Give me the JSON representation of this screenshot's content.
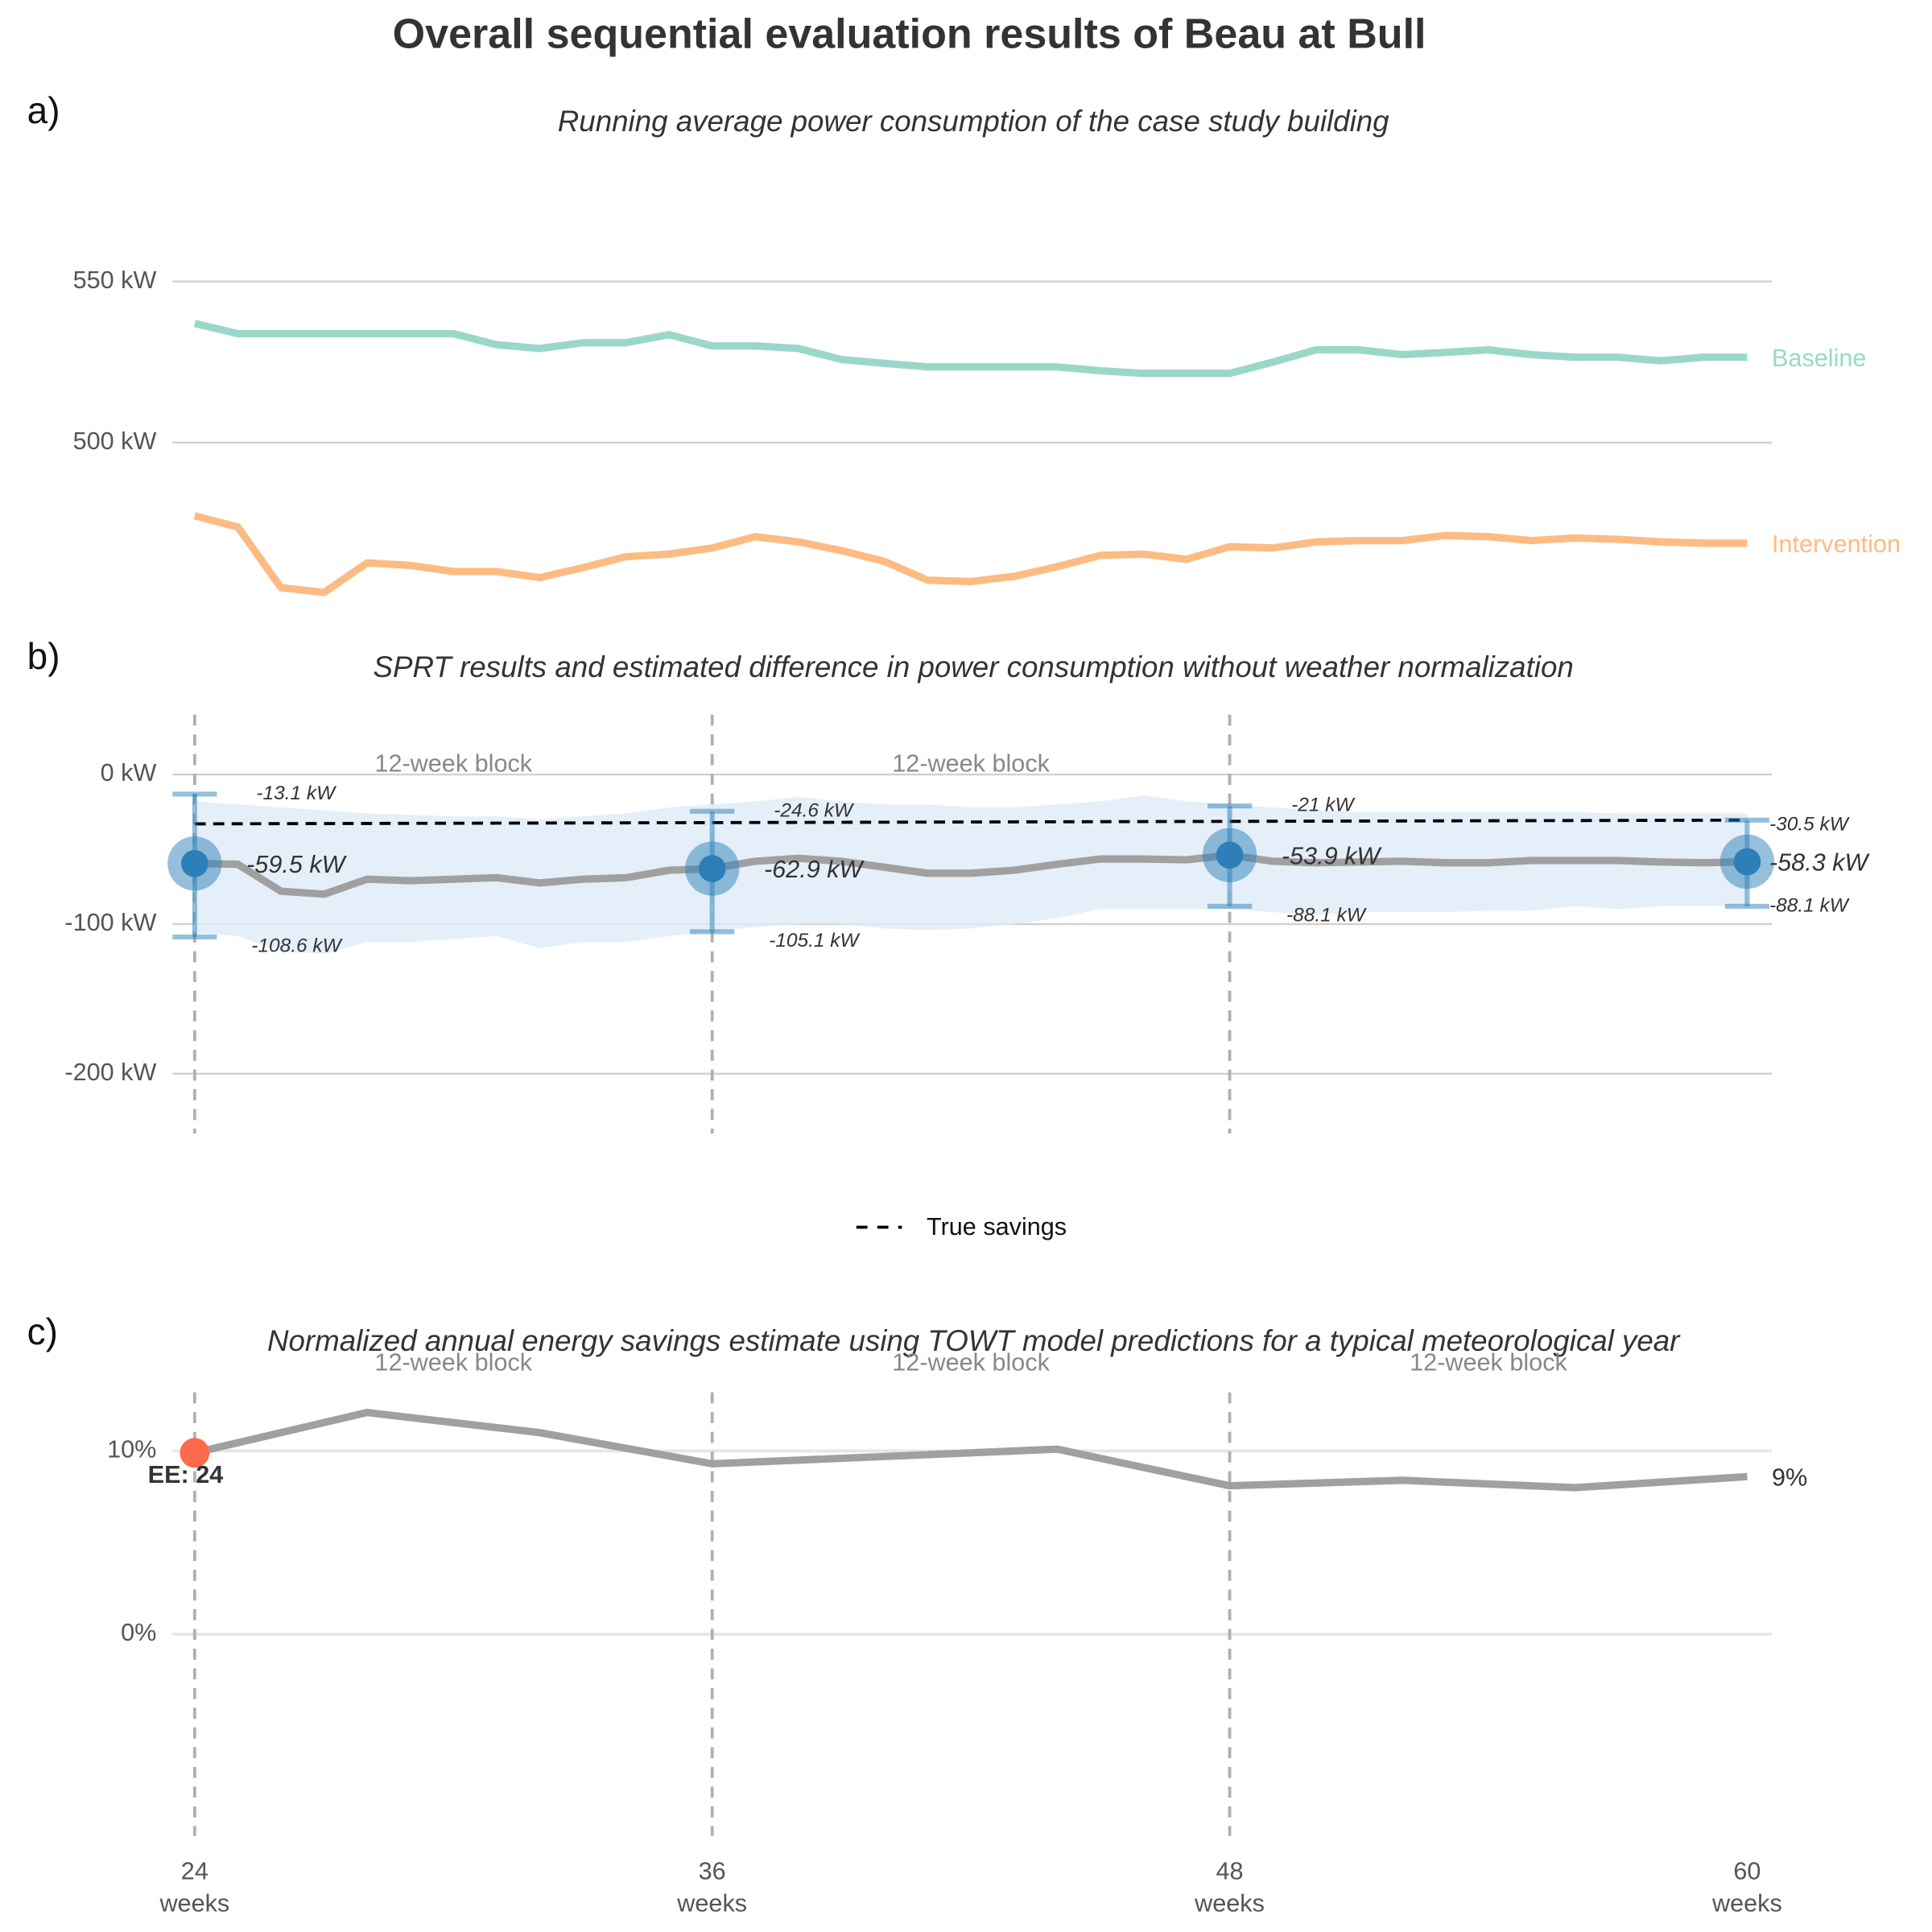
{
  "title": "Overall sequential evaluation results of Beau at Bull",
  "chart_data": [
    {
      "type": "line",
      "panel_label": "a)",
      "subtitle": "Running average power consumption of the case study building",
      "x": [
        24,
        25,
        26,
        27,
        28,
        29,
        30,
        31,
        32,
        33,
        34,
        35,
        36,
        37,
        38,
        39,
        40,
        41,
        42,
        43,
        44,
        45,
        46,
        47,
        48,
        49,
        50,
        51,
        52,
        53,
        54,
        55,
        56,
        57,
        58,
        59,
        60
      ],
      "series": [
        {
          "name": "Baseline",
          "color": "#99d8c9",
          "values": [
            537,
            533.8,
            533.8,
            533.8,
            533.8,
            533.8,
            533.8,
            530.4,
            529.2,
            531,
            531,
            533.5,
            530,
            530,
            529.2,
            525.8,
            524.6,
            523.5,
            523.5,
            523.5,
            523.5,
            522.3,
            521.5,
            521.5,
            521.5,
            525,
            528.8,
            528.8,
            527.3,
            528,
            528.8,
            527.3,
            526.5,
            526.5,
            525.4,
            526.5,
            526.5
          ]
        },
        {
          "name": "Intervention",
          "color": "#fdbb84",
          "values": [
            477.3,
            473.8,
            455,
            453.5,
            462.7,
            461.9,
            460,
            460,
            458.1,
            461.2,
            464.6,
            465.4,
            467.3,
            470.8,
            469.2,
            466.5,
            463.1,
            457.3,
            456.9,
            458.5,
            461.5,
            465,
            465.4,
            463.8,
            467.7,
            467.3,
            469.2,
            469.6,
            469.6,
            471.2,
            470.8,
            469.6,
            470.4,
            470,
            469.2,
            468.8,
            468.8
          ]
        }
      ],
      "xlim": [
        24,
        60
      ],
      "ylim": [
        450,
        580
      ],
      "yticks": [
        {
          "value": 500,
          "label": "500 kW"
        },
        {
          "value": 550,
          "label": "550 kW"
        }
      ],
      "grid": true,
      "legend": "line-end"
    },
    {
      "type": "errorbar",
      "panel_label": "b)",
      "subtitle": "SPRT results and estimated difference in power consumption without weather normalization",
      "x": [
        24,
        25,
        26,
        27,
        28,
        29,
        30,
        31,
        32,
        33,
        34,
        35,
        36,
        37,
        38,
        39,
        40,
        41,
        42,
        43,
        44,
        45,
        46,
        47,
        48,
        49,
        50,
        51,
        52,
        53,
        54,
        55,
        56,
        57,
        58,
        59,
        60
      ],
      "line": {
        "color": "#a0a0a0",
        "values": [
          -59.5,
          -60,
          -78,
          -80,
          -70,
          -71,
          -70,
          -69,
          -72.5,
          -70,
          -69,
          -64,
          -62.9,
          -58,
          -56,
          -58,
          -62,
          -66,
          -66,
          -64,
          -60,
          -56.5,
          -56.5,
          -57,
          -53.9,
          -58,
          -59,
          -58.5,
          -58,
          -59,
          -59,
          -57.5,
          -57.5,
          -57.5,
          -58.5,
          -59,
          -58.3
        ]
      },
      "band": {
        "color": "#deebf7",
        "upper": [
          -18,
          -20,
          -22,
          -24,
          -26,
          -27,
          -28,
          -28,
          -30,
          -28,
          -26,
          -22,
          -20,
          -18,
          -15,
          -18,
          -20,
          -20,
          -22,
          -22,
          -20,
          -18,
          -14,
          -18,
          -20,
          -22,
          -24,
          -25,
          -25,
          -25,
          -25,
          -25,
          -25,
          -26,
          -26,
          -26,
          -26
        ],
        "lower": [
          -106,
          -108,
          -118,
          -120,
          -112,
          -112,
          -110,
          -108,
          -116,
          -112,
          -112,
          -108,
          -105,
          -102,
          -100,
          -100,
          -103,
          -104,
          -103,
          -100,
          -96,
          -90,
          -90,
          -90,
          -90,
          -92,
          -94,
          -92,
          -92,
          -92,
          -91,
          -91,
          -88,
          -90,
          -88,
          -88,
          -88
        ]
      },
      "checkpoints": {
        "color": "#2c7fb8",
        "x": [
          24,
          36,
          48,
          60
        ],
        "values": [
          -59.5,
          -62.9,
          -53.9,
          -58.3
        ],
        "value_labels": [
          "-59.5 kW",
          "-62.9 kW",
          "-53.9 kW",
          "-58.3 kW"
        ],
        "upper": [
          -13.1,
          -24.6,
          -21,
          -30.5
        ],
        "upper_labels": [
          "-13.1 kW",
          "-24.6 kW",
          "-21 kW",
          "-30.5 kW"
        ],
        "lower": [
          -108.6,
          -105.1,
          -88.1,
          -88.1
        ],
        "lower_labels": [
          "-108.6 kW",
          "-105.1 kW",
          "-88.1 kW",
          "-88.1 kW"
        ]
      },
      "true_savings": {
        "name": "True savings",
        "color": "#000000",
        "x": [
          24,
          60
        ],
        "values": [
          -33,
          -30.5
        ]
      },
      "block_lines": [
        24,
        36,
        48
      ],
      "block_labels": [
        {
          "x": 30,
          "label": "12-week block"
        },
        {
          "x": 42,
          "label": "12-week block"
        }
      ],
      "xlim": [
        24,
        60
      ],
      "ylim": [
        -240,
        40
      ],
      "yticks": [
        {
          "value": -200,
          "label": "-200 kW"
        },
        {
          "value": -100,
          "label": "-100 kW"
        },
        {
          "value": 0,
          "label": "0 kW"
        }
      ],
      "grid": true
    },
    {
      "type": "line",
      "panel_label": "c)",
      "subtitle": "Normalized annual energy savings estimate using TOWT model predictions for a typical meteorological year",
      "x": [
        24,
        28,
        32,
        36,
        40,
        44,
        48,
        52,
        56,
        60
      ],
      "values": [
        9.9,
        12.1,
        11.0,
        9.3,
        9.7,
        10.1,
        8.1,
        8.4,
        8.0,
        8.6
      ],
      "color": "#a0a0a0",
      "value_labels": [
        null,
        null,
        null,
        null,
        null,
        null,
        null,
        null,
        null,
        "9%"
      ],
      "ee_marker": {
        "x": 24,
        "value": 9.9,
        "label": "EE: 24",
        "color": "#fb6a4a"
      },
      "block_lines": [
        24,
        36,
        48
      ],
      "block_labels": [
        {
          "x": 30,
          "label": "12-week block"
        },
        {
          "x": 42,
          "label": "12-week block"
        },
        {
          "x": 54,
          "label": "12-week block"
        }
      ],
      "xlim": [
        24,
        60
      ],
      "ylim": [
        -11,
        13.2
      ],
      "xticks": [
        {
          "value": 24,
          "label": "24 weeks"
        },
        {
          "value": 36,
          "label": "36 weeks"
        },
        {
          "value": 48,
          "label": "48 weeks"
        },
        {
          "value": 60,
          "label": "60 weeks"
        }
      ],
      "yticks": [
        {
          "value": 0,
          "label": "0%"
        },
        {
          "value": 10,
          "label": "10%"
        }
      ],
      "grid": true
    }
  ]
}
